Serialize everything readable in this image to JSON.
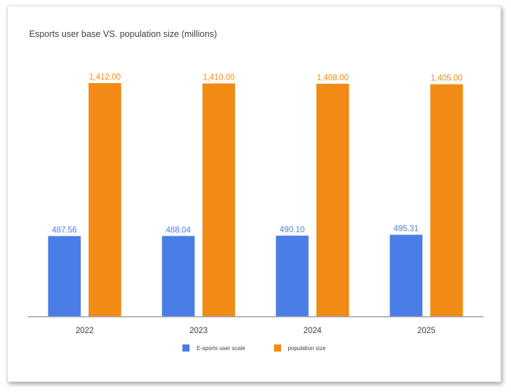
{
  "chart_data": {
    "type": "bar",
    "title": "Esports user base VS. population size (millions)",
    "xlabel": "",
    "ylabel": "",
    "categories": [
      "2022",
      "2023",
      "2024",
      "2025"
    ],
    "series": [
      {
        "name": "E-sports user scale",
        "color": "#4a7ee6",
        "values": [
          487.56,
          488.04,
          490.1,
          495.31
        ],
        "labels": [
          "487.56",
          "488.04",
          "490.10",
          "495.31"
        ]
      },
      {
        "name": "population size",
        "color": "#f28b15",
        "values": [
          1412.0,
          1410.0,
          1408.0,
          1405.0
        ],
        "labels": [
          "1,412.00",
          "1,410.00",
          "1,408.00",
          "1,405.00"
        ]
      }
    ],
    "ylim": [
      0,
      1412
    ],
    "grid": false,
    "legend_position": "bottom"
  }
}
